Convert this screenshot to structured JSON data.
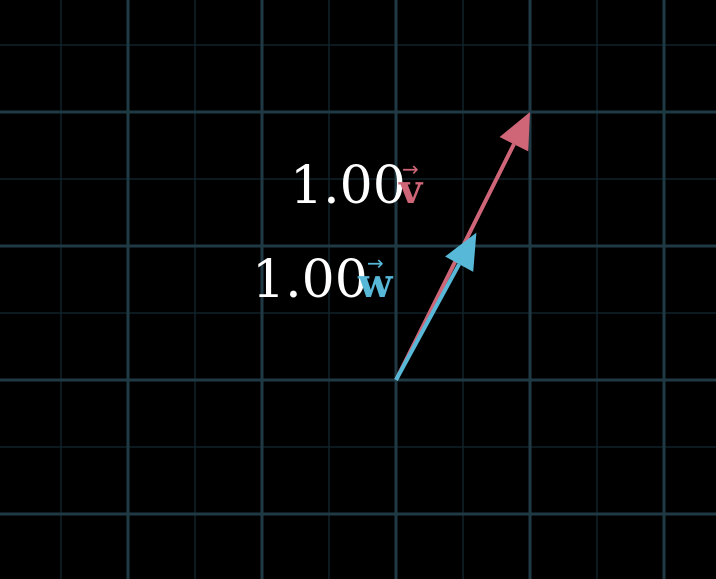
{
  "colors": {
    "background": "#000000",
    "grid_major": "#1f3a44",
    "grid_minor": "#10222a",
    "label": "#ffffff",
    "vector_v": "#cf6677",
    "vector_w": "#58b8d8"
  },
  "vectors": [
    {
      "id": "v",
      "coefficient": "1.00",
      "letter": "v",
      "arrow_mark": "→",
      "x": 1.0,
      "y": 2.0,
      "color": "#cf6677"
    },
    {
      "id": "w",
      "coefficient": "1.00",
      "letter": "w",
      "arrow_mark": "→",
      "x": 0.6,
      "y": 1.1,
      "color": "#58b8d8"
    }
  ],
  "grid": {
    "step": 1,
    "minor_divisions": 2
  }
}
